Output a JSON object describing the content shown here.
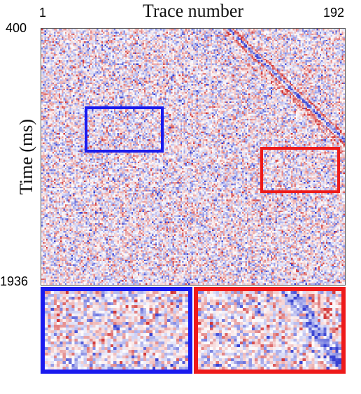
{
  "figure": {
    "title": "Trace number",
    "x_ticks": {
      "left": "1",
      "right": "192"
    },
    "y_ticks": {
      "top": "400",
      "bottom": "1936"
    },
    "y_label": "Time (ms)"
  },
  "colors": {
    "roi_blue": "#1a1aee",
    "roi_red": "#ee1a1a",
    "positive": "#d23a3a",
    "negative": "#3a4ad2"
  },
  "insets": [
    {
      "name": "blue-zoom",
      "color": "#1a1aee"
    },
    {
      "name": "red-zoom",
      "color": "#ee1a1a"
    }
  ]
}
